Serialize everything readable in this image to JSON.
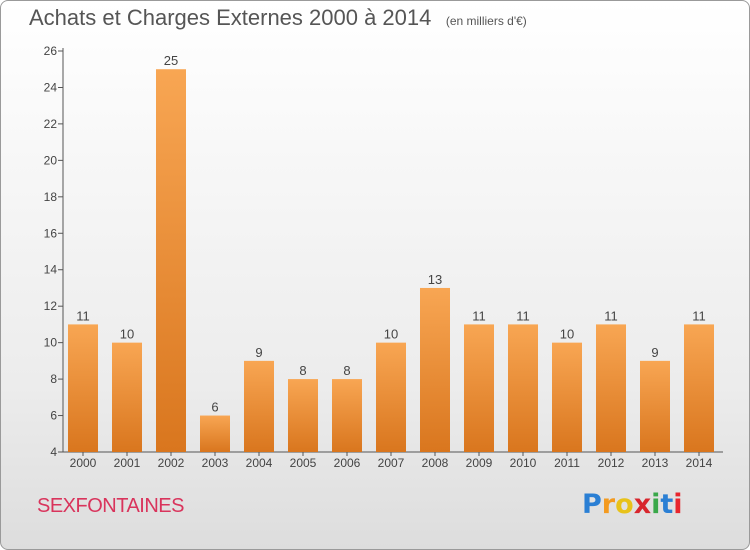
{
  "title": "Achats et Charges Externes 2000 à 2014",
  "subtitle": "(en milliers d'€)",
  "commune": "SEXFONTAINES",
  "logo": {
    "letters": [
      "P",
      "r",
      "o",
      "x",
      "i",
      "t",
      "i"
    ],
    "colors": [
      "#2a7fd4",
      "#f39a1f",
      "#e8c21a",
      "#d8262d",
      "#3aa84a",
      "#2a7fd4",
      "#e8262d"
    ]
  },
  "colors": {
    "bar_light": "#f8a653",
    "bar_dark": "#d9761e",
    "axis": "#555555",
    "grid": "#cfcfcf"
  },
  "chart_data": {
    "type": "bar",
    "categories": [
      "2000",
      "2001",
      "2002",
      "2003",
      "2004",
      "2005",
      "2006",
      "2007",
      "2008",
      "2009",
      "2010",
      "2011",
      "2012",
      "2013",
      "2014"
    ],
    "values": [
      11,
      10,
      25,
      6,
      9,
      8,
      8,
      10,
      13,
      11,
      11,
      10,
      11,
      9,
      11
    ],
    "data_labels": [
      "11",
      "10",
      "25",
      "6",
      "9",
      "8",
      "8",
      "10",
      "13",
      "11",
      "11",
      "10",
      "11",
      "9",
      "11"
    ],
    "ylim": [
      4,
      26
    ],
    "yticks": [
      4,
      6,
      8,
      10,
      12,
      14,
      16,
      18,
      20,
      22,
      24,
      26
    ],
    "grid": false
  }
}
